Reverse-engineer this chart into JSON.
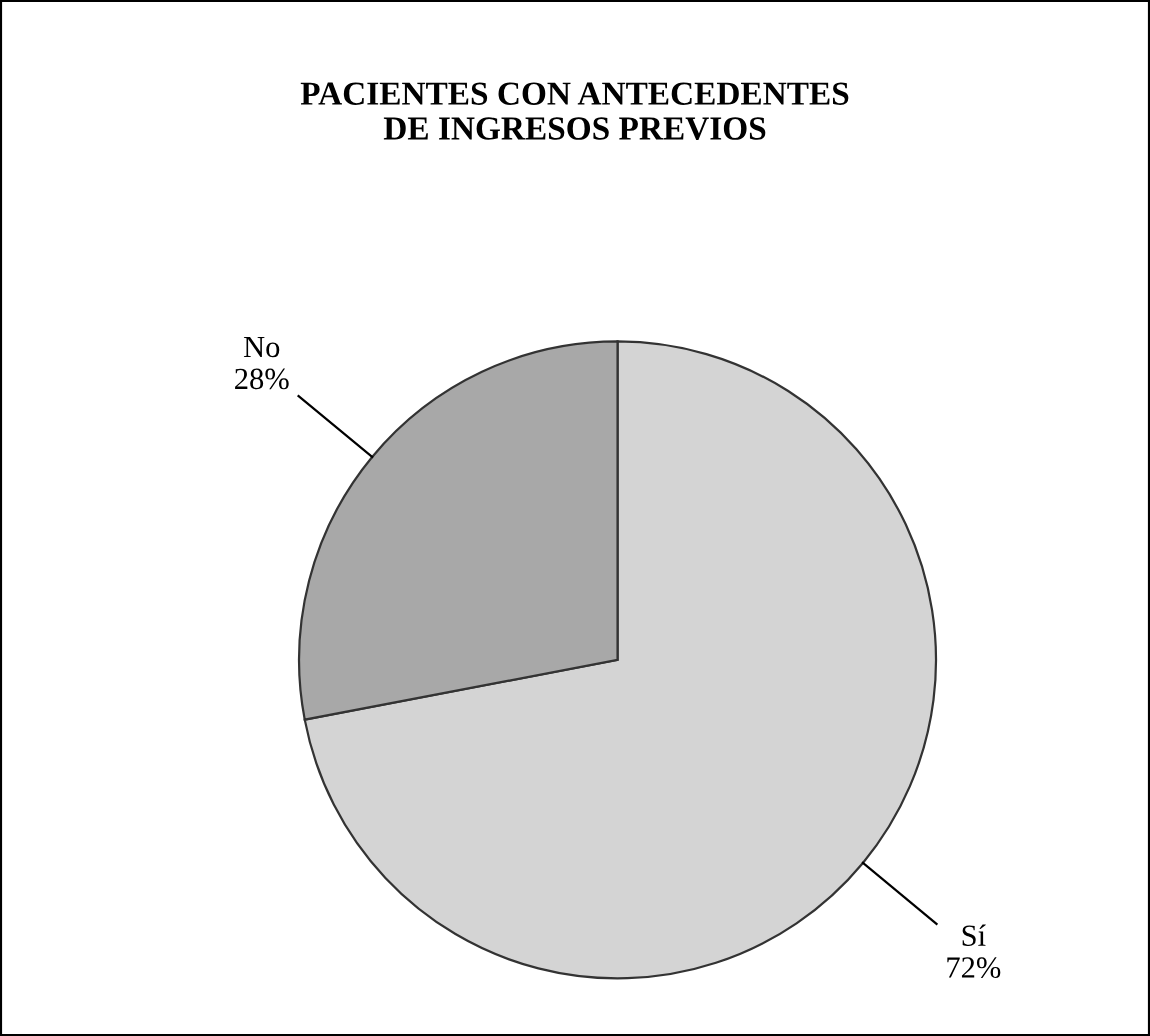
{
  "chart_data": {
    "type": "pie",
    "title": "PACIENTES CON ANTECEDENTES\nDE INGRESOS PREVIOS",
    "categories": [
      "Sí",
      "No"
    ],
    "values": [
      72,
      28
    ],
    "colors": [
      "#d4d4d4",
      "#a8a8a8"
    ],
    "value_labels": [
      "72%",
      "28%"
    ],
    "legend": false
  }
}
